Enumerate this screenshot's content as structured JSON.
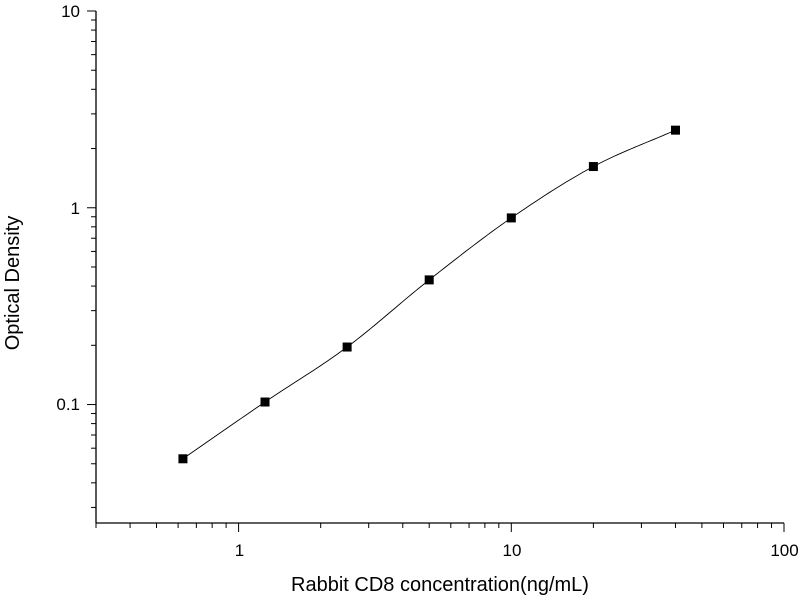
{
  "chart_data": {
    "type": "scatter",
    "xlabel": "Rabbit CD8 concentration(ng/mL)",
    "ylabel": "Optical Density",
    "xscale": "log",
    "yscale": "log",
    "xlim": [
      0.3,
      100
    ],
    "ylim": [
      0.025,
      10
    ],
    "x_tick_labels": [
      "1",
      "10",
      "100"
    ],
    "y_tick_labels": [
      "10",
      "1",
      "0.1"
    ],
    "grid": false,
    "legend": "none",
    "series": [
      {
        "marker": "square",
        "color": "#000000",
        "x": [
          0.625,
          1.25,
          2.5,
          5,
          10,
          20,
          40
        ],
        "y": [
          0.053,
          0.103,
          0.196,
          0.43,
          0.888,
          1.62,
          2.48
        ]
      }
    ],
    "fit_curve": {
      "color": "#000000",
      "x": [
        0.625,
        1.25,
        2.5,
        5,
        10,
        20,
        40
      ],
      "y": [
        0.053,
        0.103,
        0.196,
        0.43,
        0.888,
        1.62,
        2.48
      ]
    }
  }
}
